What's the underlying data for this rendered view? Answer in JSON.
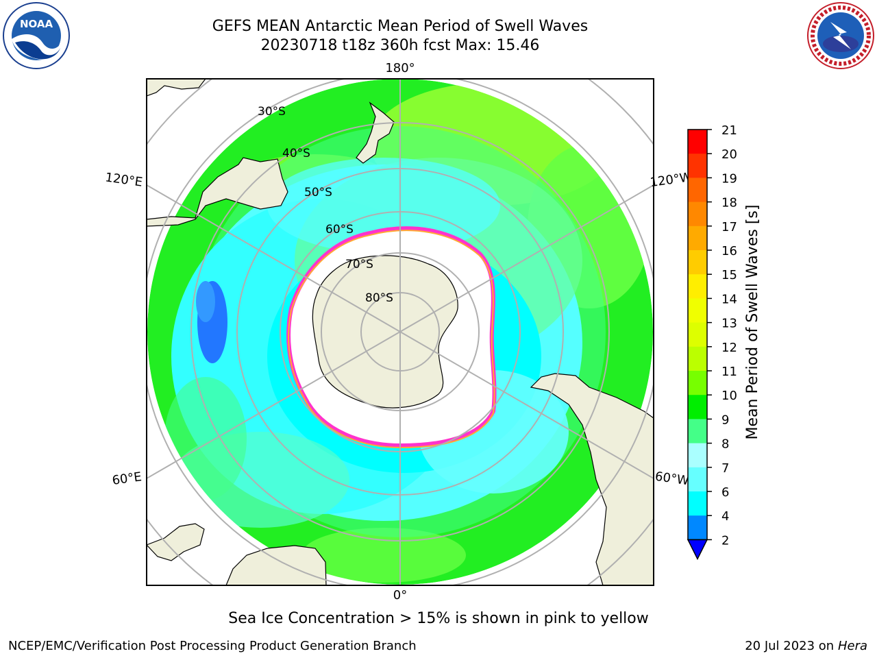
{
  "title": {
    "line1": "GEFS MEAN Antarctic Mean Period of Swell Waves",
    "line2": "20230718 t18z 360h fcst   Max: 15.46"
  },
  "logos": {
    "left": {
      "icon": "noaa-logo",
      "text": "NOAA",
      "ring_text": "NATIONAL OCEANIC AND ATMOSPHERIC ADMINISTRATION · U.S. DEPARTMENT OF COMMERCE"
    },
    "right": {
      "icon": "nws-logo",
      "ring_text": "NATIONAL WEATHER SERVICE"
    }
  },
  "map": {
    "projection": "south polar stereographic",
    "longitude_labels": [
      "180°",
      "120°E",
      "120°W",
      "60°E",
      "60°W",
      "0°"
    ],
    "latitude_labels": [
      "30°S",
      "40°S",
      "50°S",
      "60°S",
      "70°S",
      "80°S"
    ],
    "ocean_colors": {
      "light_cyan": "#aaffff",
      "cyan": "#33ffff",
      "bright_cyan": "#00ffff",
      "light_green": "#55ff77",
      "green": "#22ee22",
      "yellow_green": "#ccff22",
      "blue": "#2277ff"
    },
    "land_color": "#efefdb",
    "sea_ice_edge_colors": [
      "#ff44dd",
      "#ff22aa",
      "#ffaa33",
      "#ffff66"
    ]
  },
  "colorbar": {
    "label": "Mean Period of Swell Waves [s]",
    "ticks": [
      "21",
      "20",
      "19",
      "18",
      "17",
      "16",
      "15",
      "14",
      "13",
      "12",
      "11",
      "10",
      "9",
      "8",
      "7",
      "6",
      "4",
      "2"
    ],
    "colors": [
      "#ff0000",
      "#ff3300",
      "#ff6600",
      "#ff8800",
      "#ffaa00",
      "#ffcc00",
      "#ffee00",
      "#f0ff00",
      "#ddff00",
      "#bbff00",
      "#77ff00",
      "#00ee00",
      "#44ff88",
      "#aaffff",
      "#66ffff",
      "#00ffff",
      "#0088ff",
      "#0000ff"
    ],
    "extend_color": "#0000ff"
  },
  "footer": {
    "note": "Sea Ice Concentration > 15% is shown in pink to yellow",
    "left": "NCEP/EMC/Verification Post Processing Product Generation Branch",
    "right_date": "20 Jul 2023 on ",
    "right_machine": "Hera"
  }
}
